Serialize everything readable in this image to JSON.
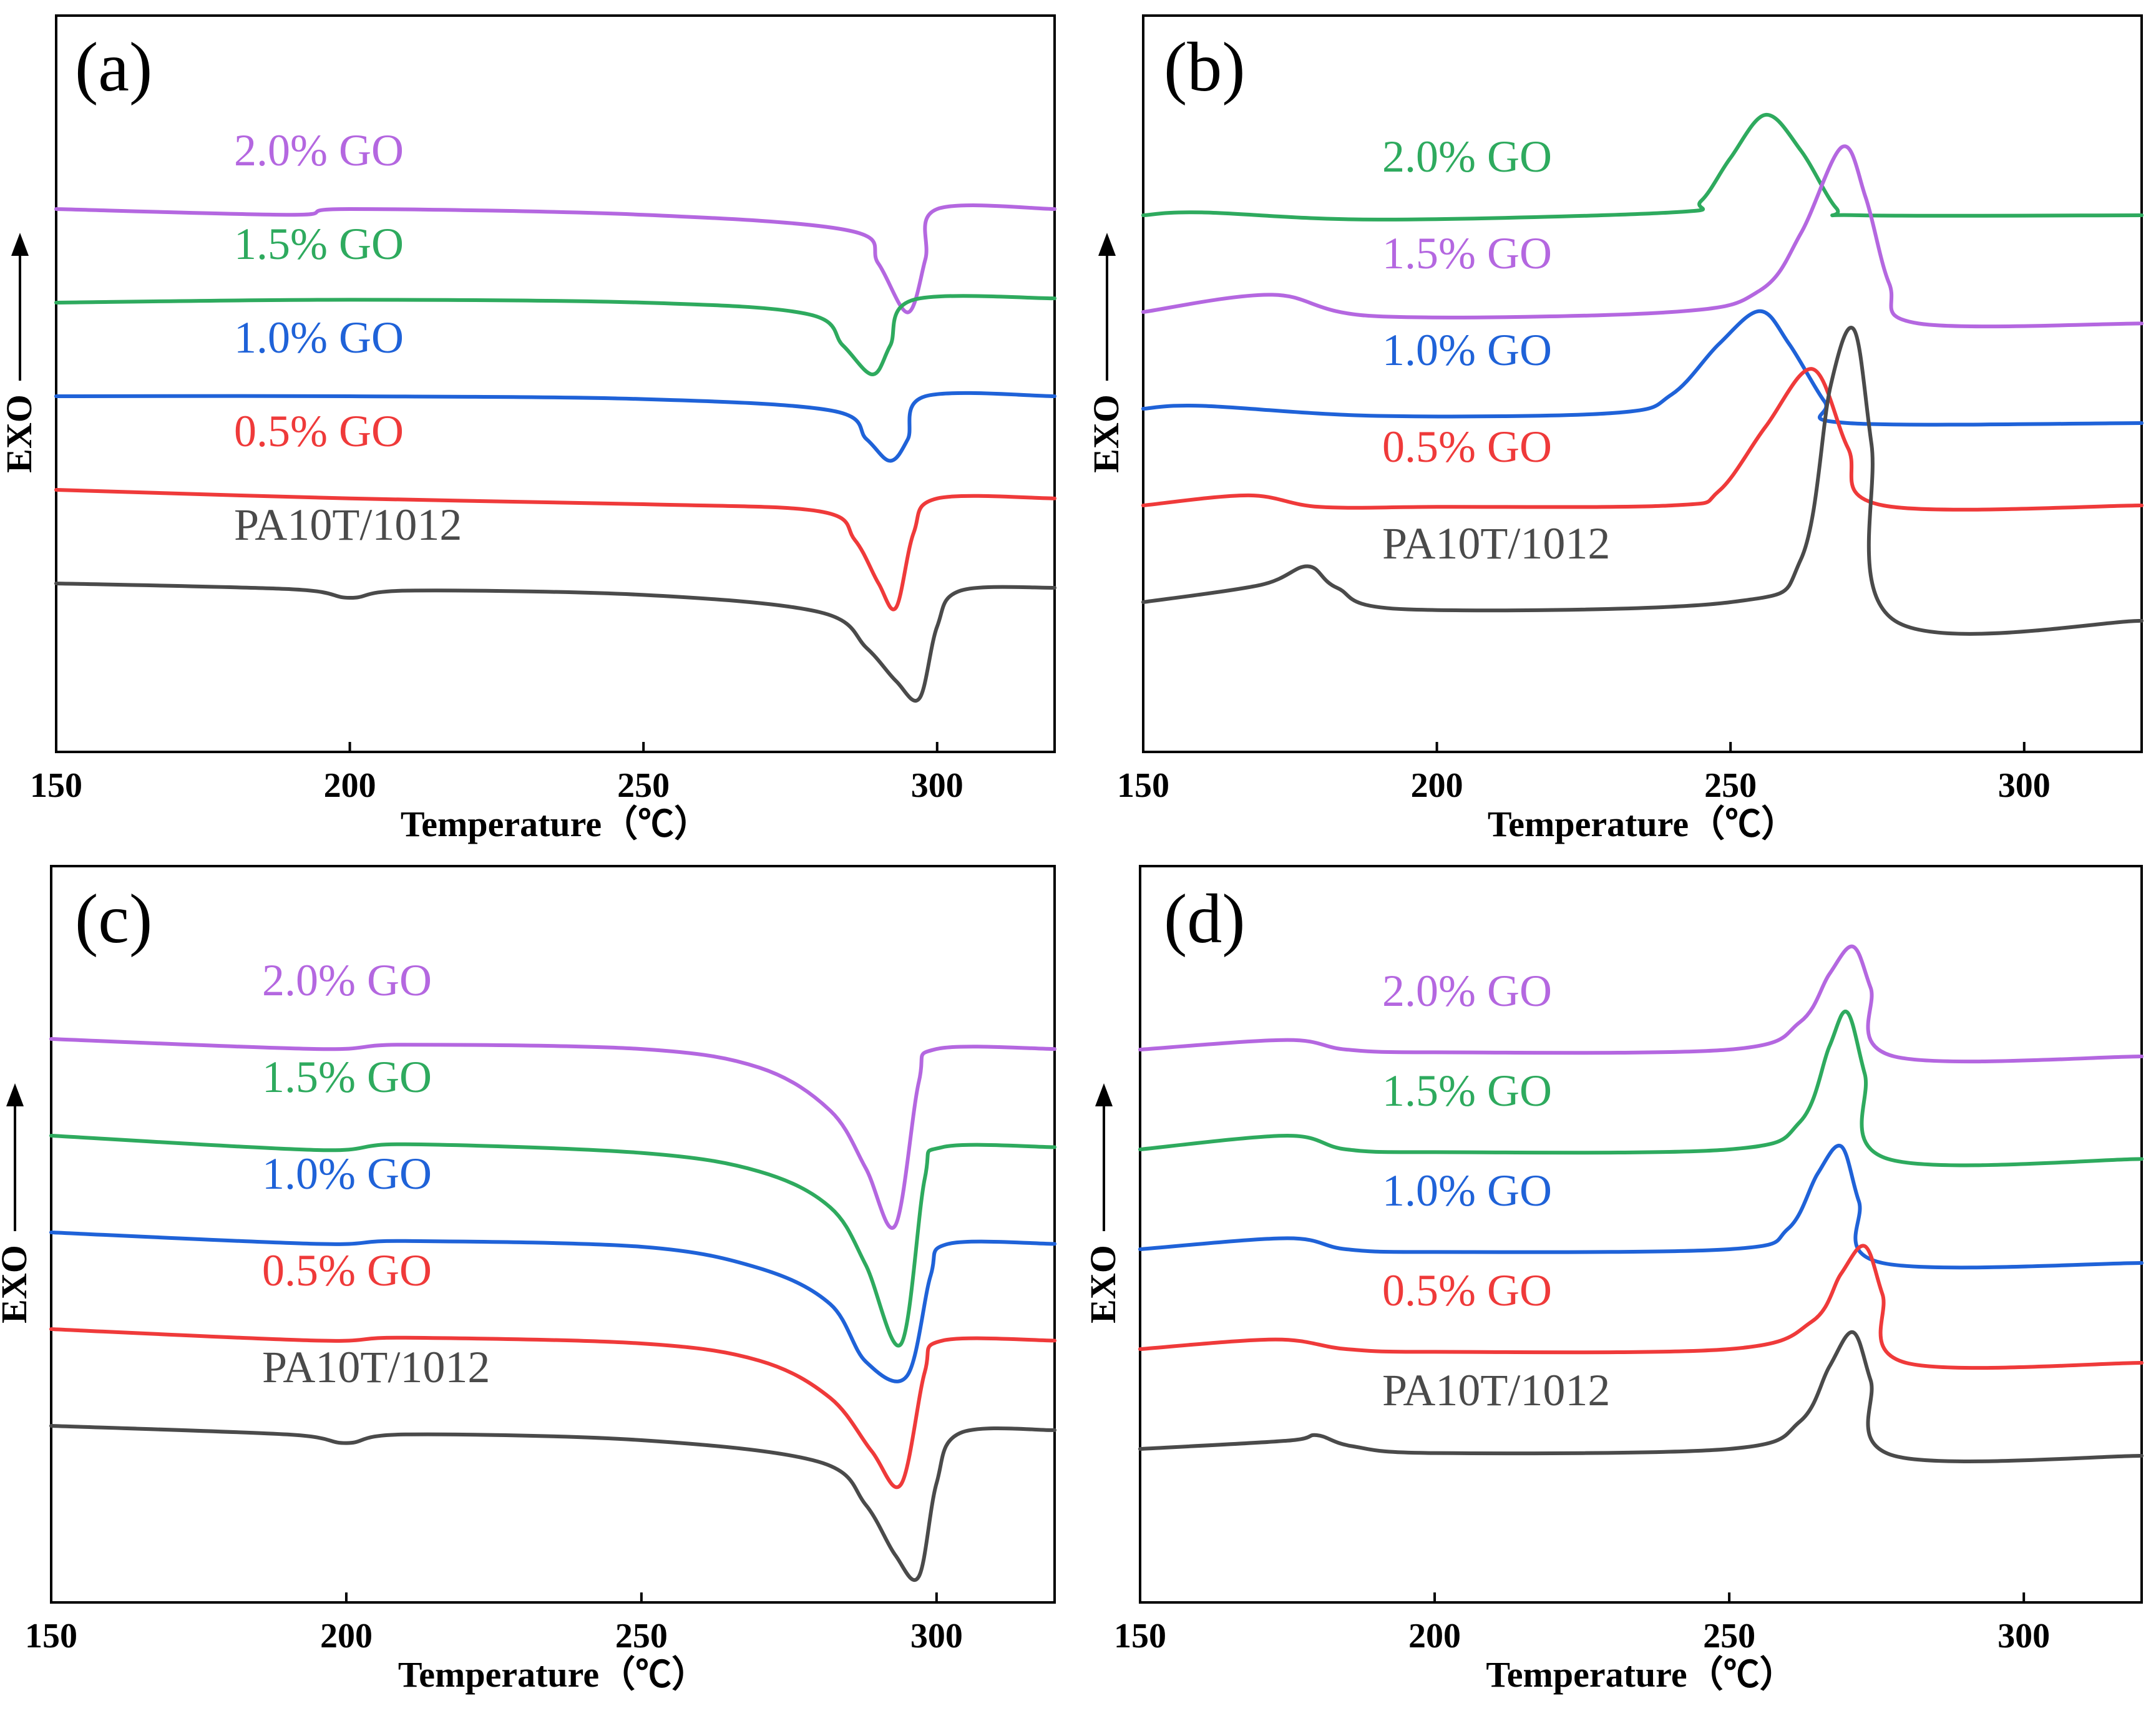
{
  "colors": {
    "purple": "#b467e0",
    "green": "#2eaa5e",
    "blue": "#1f62d8",
    "red": "#ef3a3a",
    "gray": "#4a4a4a"
  },
  "chart_data": [
    {
      "panel": "(a)",
      "type": "line",
      "xlabel": "Temperature（℃）",
      "ylabel": "EXO",
      "xlim": [
        150,
        320
      ],
      "xticks": [
        "150",
        "200",
        "250",
        "300"
      ],
      "series": [
        {
          "name": "2.0% GO",
          "color": "purple",
          "offset": 4.0,
          "x": [
            150,
            190,
            200,
            250,
            285,
            290,
            295,
            298,
            300,
            320
          ],
          "y": [
            0,
            -0.04,
            0,
            -0.04,
            -0.15,
            -0.38,
            -0.72,
            -0.35,
            0,
            0
          ]
        },
        {
          "name": "1.5% GO",
          "color": "green",
          "offset": 3.0,
          "x": [
            150,
            200,
            250,
            278,
            284,
            289,
            292,
            296,
            320
          ],
          "y": [
            0,
            0.02,
            0,
            -0.08,
            -0.3,
            -0.5,
            -0.3,
            0.02,
            0.03
          ]
        },
        {
          "name": "1.0% GO",
          "color": "blue",
          "offset": 2.0,
          "x": [
            150,
            200,
            250,
            282,
            288,
            292,
            295,
            298,
            320
          ],
          "y": [
            0,
            0,
            -0.02,
            -0.1,
            -0.3,
            -0.45,
            -0.3,
            0,
            0
          ]
        },
        {
          "name": "0.5% GO",
          "color": "red",
          "offset": 1.0,
          "x": [
            150,
            200,
            250,
            280,
            286,
            290,
            293,
            296,
            300,
            320
          ],
          "y": [
            0,
            -0.06,
            -0.1,
            -0.15,
            -0.35,
            -0.65,
            -0.82,
            -0.3,
            -0.06,
            -0.06
          ]
        },
        {
          "name": "PA10T/1012",
          "color": "gray",
          "offset": 0.0,
          "x": [
            150,
            190,
            200,
            210,
            250,
            280,
            288,
            293,
            297,
            300,
            304,
            320
          ],
          "y": [
            0,
            -0.04,
            -0.1,
            -0.05,
            -0.08,
            -0.2,
            -0.45,
            -0.68,
            -0.8,
            -0.3,
            -0.05,
            -0.03
          ]
        }
      ]
    },
    {
      "panel": "(b)",
      "type": "line",
      "xlabel": "Temperature（℃）",
      "ylabel": "EXO",
      "xlim": [
        150,
        320
      ],
      "xticks": [
        "150",
        "200",
        "250",
        "300"
      ],
      "series": [
        {
          "name": "2.0% GO",
          "color": "green",
          "offset": 4.0,
          "x": [
            150,
            160,
            190,
            240,
            245,
            250,
            256,
            262,
            268,
            272,
            320
          ],
          "y": [
            0,
            0.02,
            -0.03,
            0.02,
            0.1,
            0.4,
            0.7,
            0.45,
            0.05,
            0,
            0
          ]
        },
        {
          "name": "1.5% GO",
          "color": "purple",
          "offset": 3.0,
          "x": [
            150,
            172,
            190,
            240,
            255,
            262,
            269,
            273,
            277,
            282,
            320
          ],
          "y": [
            0,
            0.12,
            -0.03,
            0,
            0.15,
            0.55,
            1.15,
            0.8,
            0.2,
            -0.08,
            -0.08
          ]
        },
        {
          "name": "1.0% GO",
          "color": "blue",
          "offset": 2.0,
          "x": [
            150,
            160,
            190,
            230,
            240,
            248,
            255,
            260,
            266,
            270,
            320
          ],
          "y": [
            0,
            0.02,
            -0.05,
            -0.03,
            0.1,
            0.45,
            0.68,
            0.45,
            0.05,
            -0.1,
            -0.1
          ]
        },
        {
          "name": "0.5% GO",
          "color": "red",
          "offset": 1.0,
          "x": [
            150,
            168,
            180,
            200,
            240,
            248,
            256,
            264,
            270,
            276,
            320
          ],
          "y": [
            0,
            0.07,
            -0.01,
            -0.01,
            0,
            0.1,
            0.55,
            0.95,
            0.4,
            0,
            0
          ]
        },
        {
          "name": "PA10T/1012",
          "color": "gray",
          "offset": 0.0,
          "x": [
            150,
            170,
            178,
            183,
            195,
            250,
            262,
            267,
            271,
            274,
            278,
            320
          ],
          "y": [
            0,
            0.12,
            0.25,
            0.1,
            -0.05,
            0,
            0.3,
            1.5,
            1.9,
            1.1,
            -0.13,
            -0.13
          ]
        }
      ]
    },
    {
      "panel": "(c)",
      "type": "line",
      "xlabel": "Temperature（℃）",
      "ylabel": "EXO",
      "xlim": [
        150,
        320
      ],
      "xticks": [
        "150",
        "200",
        "250",
        "300"
      ],
      "series": [
        {
          "name": "2.0% GO",
          "color": "purple",
          "offset": 4.0,
          "x": [
            150,
            195,
            210,
            250,
            270,
            282,
            288,
            293,
            297,
            300,
            320
          ],
          "y": [
            0,
            -0.07,
            -0.04,
            -0.07,
            -0.2,
            -0.5,
            -0.9,
            -1.3,
            -0.3,
            -0.07,
            -0.07
          ]
        },
        {
          "name": "1.5% GO",
          "color": "green",
          "offset": 3.0,
          "x": [
            150,
            195,
            210,
            250,
            270,
            282,
            288,
            294,
            298,
            301,
            320
          ],
          "y": [
            0,
            -0.1,
            -0.06,
            -0.12,
            -0.25,
            -0.5,
            -0.9,
            -1.45,
            -0.3,
            -0.08,
            -0.08
          ]
        },
        {
          "name": "1.0% GO",
          "color": "blue",
          "offset": 2.0,
          "x": [
            150,
            195,
            210,
            250,
            270,
            282,
            288,
            295,
            299,
            302,
            320
          ],
          "y": [
            0,
            -0.08,
            -0.06,
            -0.1,
            -0.25,
            -0.5,
            -0.9,
            -1.0,
            -0.3,
            -0.08,
            -0.08
          ]
        },
        {
          "name": "0.5% GO",
          "color": "red",
          "offset": 1.0,
          "x": [
            150,
            195,
            210,
            250,
            270,
            282,
            289,
            294,
            298,
            301,
            320
          ],
          "y": [
            0,
            -0.08,
            -0.06,
            -0.1,
            -0.22,
            -0.48,
            -0.85,
            -1.08,
            -0.3,
            -0.08,
            -0.08
          ]
        },
        {
          "name": "PA10T/1012",
          "color": "gray",
          "offset": 0.0,
          "x": [
            150,
            190,
            200,
            210,
            250,
            280,
            288,
            293,
            297,
            300,
            304,
            320
          ],
          "y": [
            0,
            -0.06,
            -0.12,
            -0.06,
            -0.1,
            -0.25,
            -0.55,
            -0.9,
            -1.05,
            -0.4,
            -0.05,
            -0.03
          ]
        }
      ]
    },
    {
      "panel": "(d)",
      "type": "line",
      "xlabel": "Temperature（℃）",
      "ylabel": "EXO",
      "xlim": [
        150,
        320
      ],
      "xticks": [
        "150",
        "200",
        "250",
        "300"
      ],
      "series": [
        {
          "name": "2.0% GO",
          "color": "purple",
          "offset": 4.0,
          "x": [
            150,
            175,
            185,
            200,
            250,
            262,
            267,
            271,
            274,
            278,
            320
          ],
          "y": [
            0,
            0.07,
            0,
            -0.02,
            0,
            0.2,
            0.55,
            0.75,
            0.45,
            -0.05,
            -0.05
          ]
        },
        {
          "name": "1.5% GO",
          "color": "green",
          "offset": 3.0,
          "x": [
            150,
            175,
            185,
            200,
            250,
            262,
            267,
            270,
            273,
            277,
            320
          ],
          "y": [
            0,
            0.1,
            0,
            -0.02,
            0,
            0.2,
            0.75,
            1.0,
            0.55,
            -0.07,
            -0.07
          ]
        },
        {
          "name": "1.0% GO",
          "color": "blue",
          "offset": 2.0,
          "x": [
            150,
            175,
            185,
            200,
            250,
            260,
            265,
            269,
            272,
            276,
            320
          ],
          "y": [
            0,
            0.08,
            0,
            -0.02,
            0,
            0.15,
            0.55,
            0.75,
            0.35,
            -0.1,
            -0.1
          ]
        },
        {
          "name": "0.5% GO",
          "color": "red",
          "offset": 1.0,
          "x": [
            150,
            173,
            185,
            200,
            250,
            264,
            269,
            273,
            276,
            280,
            320
          ],
          "y": [
            0,
            0.07,
            0,
            -0.02,
            0,
            0.2,
            0.55,
            0.75,
            0.4,
            -0.1,
            -0.1
          ]
        },
        {
          "name": "PA10T/1012",
          "color": "gray",
          "offset": 0.0,
          "x": [
            150,
            175,
            180,
            186,
            200,
            250,
            262,
            267,
            271,
            274,
            278,
            320
          ],
          "y": [
            0,
            0.06,
            0.1,
            0.02,
            -0.03,
            0,
            0.2,
            0.6,
            0.85,
            0.5,
            -0.05,
            -0.05
          ]
        }
      ]
    }
  ]
}
